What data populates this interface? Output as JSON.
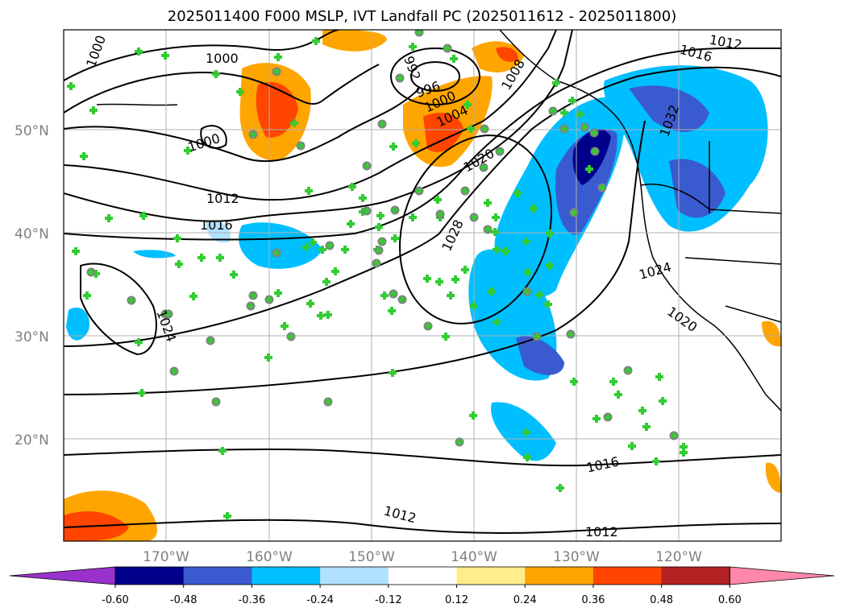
{
  "title": "2025011400 F000 MSLP, IVT Landfall PC (2025011612 - 2025011800)",
  "latitude_labels": [
    "50°N",
    "40°N",
    "30°N",
    "20°N"
  ],
  "longitude_labels": [
    "170°W",
    "160°W",
    "150°W",
    "140°W",
    "130°W",
    "120°W"
  ],
  "contour_labels": [
    "1000",
    "1000",
    "1000",
    "996",
    "992",
    "1000",
    "1004",
    "1008",
    "1012",
    "1016",
    "1020",
    "1024",
    "1028",
    "1032",
    "1012",
    "1016",
    "1024",
    "1020",
    "1016",
    "1012",
    "1012"
  ],
  "colorbar": {
    "tick_labels": [
      "-0.60",
      "-0.48",
      "-0.36",
      "-0.24",
      "-0.12",
      "0.12",
      "0.24",
      "0.36",
      "0.48",
      "0.60"
    ],
    "colors": [
      "#9932cc",
      "#00008b",
      "#3a5bd0",
      "#00bfff",
      "#b0e2ff",
      "#ffffff",
      "#ffec8b",
      "#ffa500",
      "#ff4500",
      "#b22222",
      "#ff88aa"
    ]
  },
  "colors": {
    "land_outline": "#000000",
    "grid": "#b0b0b0",
    "marker_plus": "#33cc33",
    "marker_circle": "#808080"
  }
}
